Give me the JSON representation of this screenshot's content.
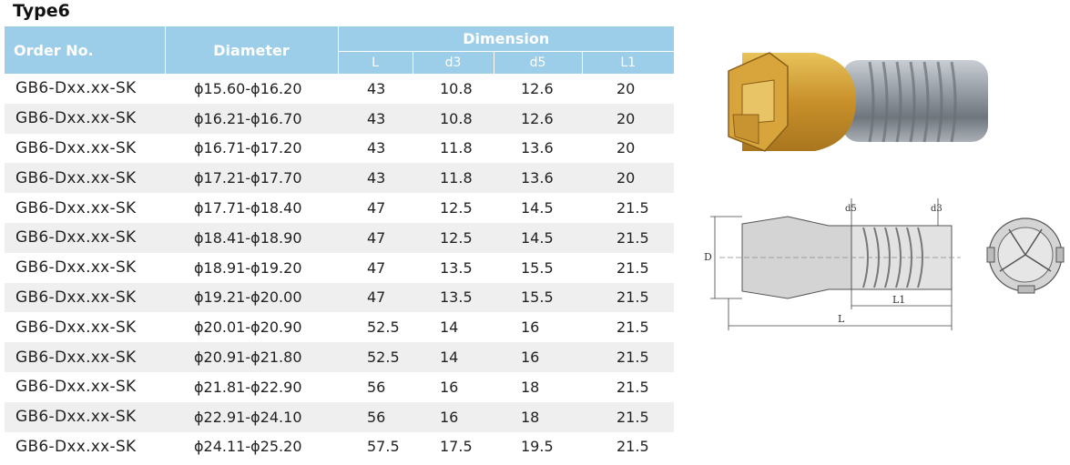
{
  "title": "Type6",
  "table": {
    "headers": {
      "order_no": "Order No.",
      "diameter": "Diameter",
      "dimension": "Dimension",
      "sub": [
        "L",
        "d3",
        "d5",
        "L1"
      ]
    },
    "rows": [
      {
        "order": "GB6-Dxx.xx-SK",
        "diameter": "ϕ15.60-ϕ16.20",
        "L": "43",
        "d3": "10.8",
        "d5": "12.6",
        "L1": "20"
      },
      {
        "order": "GB6-Dxx.xx-SK",
        "diameter": "ϕ16.21-ϕ16.70",
        "L": "43",
        "d3": "10.8",
        "d5": "12.6",
        "L1": "20"
      },
      {
        "order": "GB6-Dxx.xx-SK",
        "diameter": "ϕ16.71-ϕ17.20",
        "L": "43",
        "d3": "11.8",
        "d5": "13.6",
        "L1": "20"
      },
      {
        "order": "GB6-Dxx.xx-SK",
        "diameter": "ϕ17.21-ϕ17.70",
        "L": "43",
        "d3": "11.8",
        "d5": "13.6",
        "L1": "20"
      },
      {
        "order": "GB6-Dxx.xx-SK",
        "diameter": "ϕ17.71-ϕ18.40",
        "L": "47",
        "d3": "12.5",
        "d5": "14.5",
        "L1": "21.5"
      },
      {
        "order": "GB6-Dxx.xx-SK",
        "diameter": "ϕ18.41-ϕ18.90",
        "L": "47",
        "d3": "12.5",
        "d5": "14.5",
        "L1": "21.5"
      },
      {
        "order": "GB6-Dxx.xx-SK",
        "diameter": "ϕ18.91-ϕ19.20",
        "L": "47",
        "d3": "13.5",
        "d5": "15.5",
        "L1": "21.5"
      },
      {
        "order": "GB6-Dxx.xx-SK",
        "diameter": "ϕ19.21-ϕ20.00",
        "L": "47",
        "d3": "13.5",
        "d5": "15.5",
        "L1": "21.5"
      },
      {
        "order": "GB6-Dxx.xx-SK",
        "diameter": "ϕ20.01-ϕ20.90",
        "L": "52.5",
        "d3": "14",
        "d5": "16",
        "L1": "21.5"
      },
      {
        "order": "GB6-Dxx.xx-SK",
        "diameter": "ϕ20.91-ϕ21.80",
        "L": "52.5",
        "d3": "14",
        "d5": "16",
        "L1": "21.5"
      },
      {
        "order": "GB6-Dxx.xx-SK",
        "diameter": "ϕ21.81-ϕ22.90",
        "L": "56",
        "d3": "16",
        "d5": "18",
        "L1": "21.5"
      },
      {
        "order": "GB6-Dxx.xx-SK",
        "diameter": "ϕ22.91-ϕ24.10",
        "L": "56",
        "d3": "16",
        "d5": "18",
        "L1": "21.5"
      },
      {
        "order": "GB6-Dxx.xx-SK",
        "diameter": "ϕ24.11-ϕ25.20",
        "L": "57.5",
        "d3": "17.5",
        "d5": "19.5",
        "L1": "21.5"
      }
    ]
  },
  "drawing_labels": {
    "D": "D",
    "L": "L",
    "L1": "L1",
    "d5": "d5",
    "d3": "d3"
  },
  "colors": {
    "header_bg": "#9ccde9",
    "header_text": "#ffffff",
    "stripe": "#efefef",
    "gold": "#d9a636",
    "steel": "#8f959c"
  }
}
